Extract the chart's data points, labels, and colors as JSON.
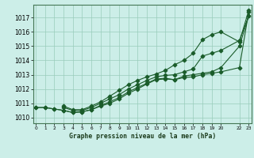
{
  "title": "Graphe pression niveau de la mer (hPa)",
  "bg_color": "#cceee8",
  "grid_color": "#99ccbb",
  "line_color": "#1a5c2a",
  "ylim": [
    1009.6,
    1017.9
  ],
  "xlim": [
    -0.3,
    23.3
  ],
  "yticks": [
    1010,
    1011,
    1012,
    1013,
    1014,
    1015,
    1016,
    1017
  ],
  "xticks": [
    0,
    1,
    2,
    3,
    4,
    5,
    6,
    7,
    8,
    9,
    10,
    11,
    12,
    13,
    14,
    15,
    16,
    17,
    18,
    19,
    20,
    22,
    23
  ],
  "xtick_labels": [
    "0",
    "1",
    "2",
    "3",
    "4",
    "5",
    "6",
    "7",
    "8",
    "9",
    "10",
    "11",
    "12",
    "13",
    "14",
    "15",
    "16",
    "17",
    "18",
    "19",
    "20",
    "22",
    "23"
  ],
  "series": [
    {
      "x": [
        0,
        1,
        2,
        3,
        4,
        5,
        6,
        7,
        8,
        9,
        10,
        11,
        12,
        13,
        14,
        15,
        16,
        17,
        18,
        19,
        20,
        22,
        23
      ],
      "y": [
        1010.7,
        1010.7,
        1010.6,
        1010.5,
        1010.35,
        1010.4,
        1010.55,
        1010.8,
        1011.0,
        1011.3,
        1011.7,
        1012.0,
        1012.35,
        1012.65,
        1012.7,
        1012.65,
        1012.8,
        1012.85,
        1013.0,
        1013.1,
        1013.2,
        1013.5,
        1017.4
      ],
      "marker": "D",
      "markersize": 2.5,
      "lw": 0.8
    },
    {
      "x": [
        0,
        1,
        2,
        3,
        4,
        5,
        6,
        7,
        8,
        9,
        10,
        11,
        12,
        13,
        14,
        15,
        16,
        17,
        18,
        19,
        20,
        22,
        23
      ],
      "y": [
        1010.7,
        1010.7,
        1010.6,
        1010.5,
        1010.35,
        1010.4,
        1010.55,
        1010.85,
        1011.1,
        1011.4,
        1011.8,
        1012.1,
        1012.4,
        1012.7,
        1012.75,
        1012.65,
        1012.9,
        1013.0,
        1013.1,
        1013.2,
        1013.5,
        1015.0,
        1017.1
      ],
      "marker": "P",
      "markersize": 3.0,
      "lw": 0.8
    },
    {
      "x": [
        3,
        4,
        5,
        6,
        7,
        8,
        9,
        10,
        11,
        12,
        13,
        14,
        15,
        16,
        17,
        18,
        19,
        20,
        22,
        23
      ],
      "y": [
        1010.7,
        1010.5,
        1010.5,
        1010.7,
        1011.0,
        1011.3,
        1011.6,
        1012.0,
        1012.3,
        1012.6,
        1012.85,
        1012.95,
        1013.0,
        1013.2,
        1013.4,
        1014.3,
        1014.5,
        1014.7,
        1015.4,
        1017.1
      ],
      "marker": "D",
      "markersize": 2.5,
      "lw": 0.8
    },
    {
      "x": [
        3,
        4,
        5,
        6,
        7,
        8,
        9,
        10,
        11,
        12,
        13,
        14,
        15,
        16,
        17,
        18,
        19,
        20,
        22,
        23
      ],
      "y": [
        1010.8,
        1010.55,
        1010.55,
        1010.8,
        1011.1,
        1011.5,
        1011.9,
        1012.3,
        1012.6,
        1012.85,
        1013.05,
        1013.3,
        1013.7,
        1014.0,
        1014.5,
        1015.45,
        1015.8,
        1016.0,
        1015.3,
        1017.5
      ],
      "marker": "D",
      "markersize": 2.5,
      "lw": 0.8
    }
  ]
}
